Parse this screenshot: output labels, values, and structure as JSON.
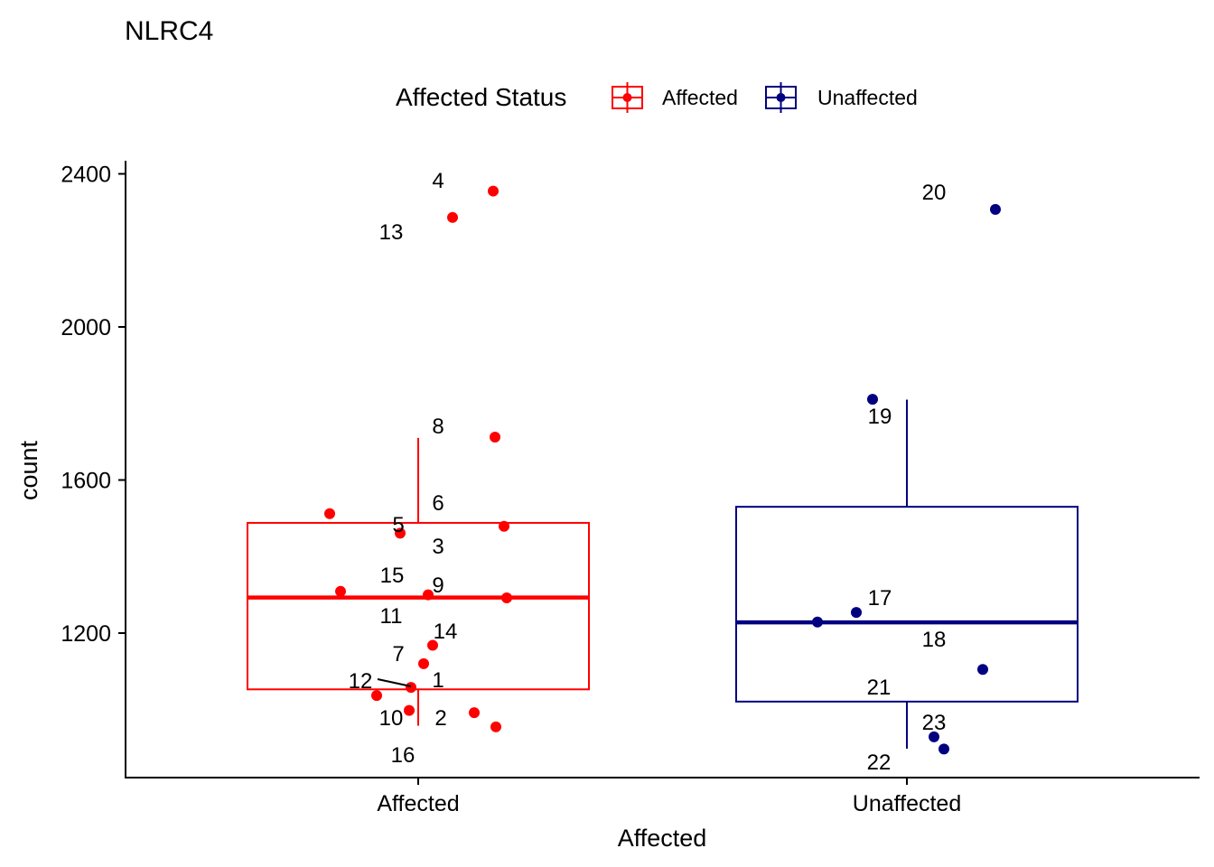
{
  "chart_data": {
    "type": "boxplot",
    "title": "NLRC4",
    "xlabel": "Affected",
    "ylabel": "count",
    "ylim": [
      880,
      2420
    ],
    "y_ticks": [
      1200,
      1600,
      2000,
      2400
    ],
    "grid": false,
    "legend": {
      "title": "Affected Status",
      "position": "top",
      "entries": [
        {
          "label": "Affected",
          "color": "#ff0000"
        },
        {
          "label": "Unaffected",
          "color": "#000080"
        }
      ]
    },
    "categories": [
      "Affected",
      "Unaffected"
    ],
    "boxes": [
      {
        "category": "Affected",
        "color": "#ff0000",
        "q1": 1053,
        "median": 1293,
        "q3": 1488,
        "whisker_low": 958,
        "whisker_high": 1710
      },
      {
        "category": "Unaffected",
        "color": "#000080",
        "q1": 1021,
        "median": 1228,
        "q3": 1530,
        "whisker_low": 898,
        "whisker_high": 1810
      }
    ],
    "points": [
      {
        "id": "1",
        "category": "Affected",
        "value": 1058
      },
      {
        "id": "2",
        "category": "Affected",
        "value": 992
      },
      {
        "id": "3",
        "category": "Affected",
        "value": 1479
      },
      {
        "id": "4",
        "category": "Affected",
        "value": 2355
      },
      {
        "id": "5",
        "category": "Affected",
        "value": 1461
      },
      {
        "id": "6",
        "category": "Affected",
        "value": 1512
      },
      {
        "id": "7",
        "category": "Affected",
        "value": 1120
      },
      {
        "id": "8",
        "category": "Affected",
        "value": 1712
      },
      {
        "id": "9",
        "category": "Affected",
        "value": 1300
      },
      {
        "id": "10",
        "category": "Affected",
        "value": 998
      },
      {
        "id": "11",
        "category": "Affected",
        "value": 1292
      },
      {
        "id": "12",
        "category": "Affected",
        "value": 1037
      },
      {
        "id": "13",
        "category": "Affected",
        "value": 2286
      },
      {
        "id": "14",
        "category": "Affected",
        "value": 1168
      },
      {
        "id": "15",
        "category": "Affected",
        "value": 1309
      },
      {
        "id": "16",
        "category": "Affected",
        "value": 955
      },
      {
        "id": "17",
        "category": "Unaffected",
        "value": 1254
      },
      {
        "id": "18",
        "category": "Unaffected",
        "value": 1229
      },
      {
        "id": "19",
        "category": "Unaffected",
        "value": 1811
      },
      {
        "id": "20",
        "category": "Unaffected",
        "value": 2307
      },
      {
        "id": "21",
        "category": "Unaffected",
        "value": 1105
      },
      {
        "id": "22",
        "category": "Unaffected",
        "value": 897
      },
      {
        "id": "23",
        "category": "Unaffected",
        "value": 929
      }
    ]
  }
}
